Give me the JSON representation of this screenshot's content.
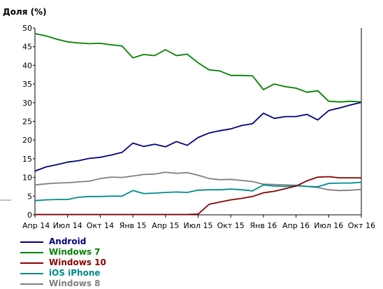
{
  "chart_data": {
    "type": "line",
    "ylabel": "Доля (%)",
    "xlabel": "",
    "ylim": [
      0,
      50
    ],
    "y_ticks": [
      0,
      5,
      10,
      15,
      20,
      25,
      30,
      35,
      40,
      45,
      50
    ],
    "x_ticks": [
      "Апр 14",
      "Июл 14",
      "Окт 14",
      "Янв 15",
      "Апр 15",
      "Июл 15",
      "Окт 15",
      "Янв 16",
      "Апр 16",
      "Июл 16",
      "Окт 16"
    ],
    "grid": false,
    "legend_position": "bottom-left",
    "x_months": [
      "2014-04",
      "2014-05",
      "2014-06",
      "2014-07",
      "2014-08",
      "2014-09",
      "2014-10",
      "2014-11",
      "2014-12",
      "2015-01",
      "2015-02",
      "2015-03",
      "2015-04",
      "2015-05",
      "2015-06",
      "2015-07",
      "2015-08",
      "2015-09",
      "2015-10",
      "2015-11",
      "2015-12",
      "2016-01",
      "2016-02",
      "2016-03",
      "2016-04",
      "2016-05",
      "2016-06",
      "2016-07",
      "2016-08",
      "2016-09",
      "2016-10"
    ],
    "series": [
      {
        "name": "Android",
        "color": "#000080",
        "values": [
          11.7,
          12.8,
          13.4,
          14.1,
          14.5,
          15.1,
          15.4,
          16.0,
          16.7,
          19.2,
          18.3,
          18.9,
          18.2,
          19.6,
          18.6,
          20.7,
          21.9,
          22.5,
          23.0,
          23.9,
          24.4,
          27.2,
          25.8,
          26.3,
          26.3,
          26.9,
          25.4,
          27.9,
          28.6,
          29.4,
          30.1
        ]
      },
      {
        "name": "Windows 7",
        "color": "#008000",
        "values": [
          48.5,
          47.9,
          47.0,
          46.3,
          46.0,
          45.8,
          45.9,
          45.5,
          45.2,
          42.0,
          42.9,
          42.6,
          44.2,
          42.6,
          43.0,
          40.7,
          38.8,
          38.5,
          37.3,
          37.3,
          37.2,
          33.5,
          35.0,
          34.3,
          33.9,
          32.8,
          33.2,
          30.4,
          30.2,
          30.4,
          30.2
        ]
      },
      {
        "name": "Windows 10",
        "color": "#8b0000",
        "values": [
          0.1,
          0.1,
          0.1,
          0.1,
          0.1,
          0.1,
          0.1,
          0.1,
          0.1,
          0.1,
          0.1,
          0.1,
          0.1,
          0.1,
          0.1,
          0.2,
          2.8,
          3.4,
          4.0,
          4.4,
          4.9,
          5.9,
          6.3,
          7.0,
          7.7,
          9.1,
          10.1,
          10.2,
          9.9,
          9.9,
          9.9
        ]
      },
      {
        "name": "iOS iPhone",
        "color": "#008b8b",
        "values": [
          3.8,
          4.0,
          4.1,
          4.1,
          4.7,
          4.9,
          4.9,
          5.0,
          5.0,
          6.5,
          5.7,
          5.8,
          6.0,
          6.1,
          6.0,
          6.6,
          6.7,
          6.7,
          6.9,
          6.7,
          6.4,
          8.0,
          7.7,
          7.6,
          7.8,
          7.6,
          7.5,
          8.4,
          8.5,
          8.5,
          8.7
        ]
      },
      {
        "name": "Windows 8",
        "color": "#808080",
        "values": [
          8.0,
          8.3,
          8.5,
          8.6,
          8.8,
          9.0,
          9.7,
          10.1,
          10.0,
          10.4,
          10.8,
          10.9,
          11.4,
          11.1,
          11.3,
          10.6,
          9.7,
          9.4,
          9.5,
          9.2,
          8.9,
          8.2,
          8.1,
          8.0,
          7.9,
          7.6,
          7.3,
          6.7,
          6.5,
          6.6,
          6.8
        ]
      }
    ]
  }
}
